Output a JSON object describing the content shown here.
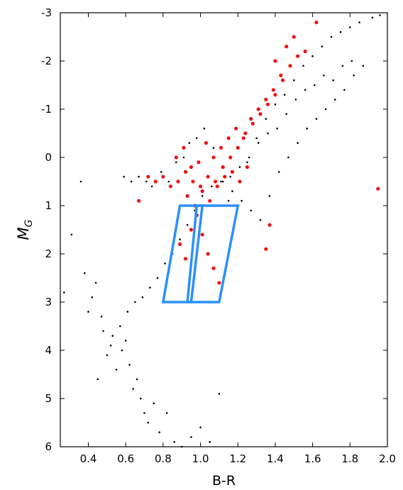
{
  "chart_data": {
    "type": "scatter",
    "title": "",
    "xlabel": "B-R",
    "ylabel": "M",
    "ylabel_subscript": "G",
    "xlim": [
      0.25,
      2.0
    ],
    "ylim": [
      6,
      -3
    ],
    "y_inverted": true,
    "grid": false,
    "xticks": [
      0.4,
      0.6,
      0.8,
      1.0,
      1.2,
      1.4,
      1.6,
      1.8,
      2.0
    ],
    "xtick_labels": [
      "0.4",
      "0.6",
      "0.8",
      "1.0",
      "1.2",
      "1.4",
      "1.6",
      "1.8",
      "2.0"
    ],
    "yticks": [
      -3,
      -2,
      -1,
      0,
      1,
      2,
      3,
      4,
      5,
      6
    ],
    "ytick_labels": [
      "-3",
      "-2",
      "-1",
      "0",
      "1",
      "2",
      "3",
      "4",
      "5",
      "6"
    ],
    "colors": {
      "black_points": "#000000",
      "red_points": "#ee1111",
      "boxes": "#2b8fff"
    },
    "series": [
      {
        "color": "#000000",
        "point_size": "small",
        "x": [
          0.27,
          0.31,
          0.36,
          0.38,
          0.4,
          0.42,
          0.45,
          0.48,
          0.5,
          0.52,
          0.55,
          0.58,
          0.6,
          0.62,
          0.64,
          0.66,
          0.68,
          0.7,
          0.72,
          0.75,
          0.78,
          0.82,
          0.86,
          0.9,
          0.95,
          1.0,
          1.05,
          1.1,
          1.15,
          1.2,
          1.25,
          1.3,
          1.35,
          1.4,
          1.45,
          1.5,
          1.55,
          1.6,
          1.65,
          1.7,
          1.75,
          1.8,
          1.85,
          1.92,
          1.96,
          0.44,
          0.47,
          0.53,
          0.57,
          0.61,
          0.65,
          0.69,
          0.73,
          0.77,
          0.81,
          0.85,
          0.89,
          0.93,
          0.97,
          1.01,
          1.06,
          1.11,
          1.16,
          1.21,
          1.26,
          1.31,
          1.36,
          1.41,
          1.46,
          1.51,
          1.56,
          1.61,
          1.66,
          1.71,
          1.76,
          1.81,
          0.59,
          0.63,
          0.67,
          0.71,
          0.74,
          0.79,
          0.83,
          0.87,
          0.91,
          0.94,
          0.98,
          1.02,
          1.07,
          1.12,
          1.17,
          1.22,
          1.27,
          1.32,
          1.37,
          1.42,
          1.47,
          1.52,
          1.57,
          1.62,
          1.67,
          1.72,
          1.77,
          1.82,
          1.87
        ],
        "y": [
          2.8,
          1.6,
          0.5,
          2.4,
          3.2,
          2.9,
          4.6,
          3.6,
          4.1,
          3.9,
          4.4,
          4.0,
          3.8,
          4.3,
          4.8,
          4.6,
          5.0,
          5.3,
          5.5,
          5.1,
          5.7,
          5.3,
          5.9,
          6.0,
          5.8,
          5.6,
          5.9,
          4.9,
          0.9,
          -0.2,
          0.1,
          -0.4,
          -0.8,
          -1.1,
          -1.3,
          -1.6,
          -1.9,
          -2.1,
          -2.3,
          -2.5,
          -2.6,
          -2.7,
          -2.8,
          -2.9,
          -2.95,
          2.6,
          3.3,
          3.7,
          3.5,
          3.2,
          3.0,
          2.9,
          2.7,
          2.5,
          2.2,
          2.0,
          1.7,
          1.4,
          1.1,
          0.8,
          0.6,
          0.5,
          0.4,
          0.2,
          0.0,
          -0.3,
          -0.5,
          -0.6,
          -0.9,
          -1.2,
          -1.4,
          -1.5,
          -1.7,
          -1.6,
          -1.9,
          -2.0,
          0.4,
          0.5,
          0.4,
          0.5,
          0.6,
          0.3,
          0.5,
          0.1,
          0.0,
          -0.3,
          -0.4,
          -0.6,
          -0.2,
          0.5,
          0.7,
          0.9,
          1.1,
          1.3,
          0.8,
          0.3,
          0.0,
          -0.3,
          -0.6,
          -0.8,
          -1.0,
          -1.2,
          -1.4,
          -1.7,
          -1.9
        ]
      },
      {
        "color": "#ee1111",
        "point_size": "large",
        "x": [
          0.67,
          1.62,
          1.95,
          1.37,
          1.35,
          0.72,
          0.76,
          0.8,
          0.84,
          0.88,
          0.92,
          0.96,
          1.0,
          1.04,
          1.08,
          1.12,
          1.16,
          1.2,
          1.24,
          1.28,
          1.32,
          1.36,
          1.4,
          1.44,
          1.48,
          1.52,
          1.56,
          0.87,
          0.91,
          0.95,
          0.99,
          1.03,
          1.07,
          1.11,
          1.15,
          1.19,
          1.23,
          1.27,
          1.31,
          1.35,
          1.39,
          1.43,
          0.93,
          0.97,
          1.01,
          1.05,
          1.09,
          1.13,
          1.17,
          1.21,
          1.25,
          0.89,
          0.92,
          0.95,
          0.98,
          1.01,
          1.04,
          1.07,
          1.1,
          1.4,
          1.46,
          1.5
        ],
        "y": [
          0.9,
          -2.8,
          0.65,
          1.4,
          1.9,
          0.4,
          0.5,
          0.4,
          0.6,
          0.5,
          0.3,
          0.5,
          0.6,
          0.4,
          0.5,
          0.2,
          0.0,
          -0.2,
          -0.5,
          -0.7,
          -0.9,
          -1.1,
          -1.3,
          -1.6,
          -1.9,
          -2.1,
          -2.2,
          0.0,
          -0.2,
          0.2,
          0.1,
          -0.3,
          0.0,
          -0.2,
          -0.4,
          -0.6,
          -0.4,
          -0.8,
          -1.0,
          -1.2,
          -1.4,
          -1.7,
          0.8,
          1.0,
          0.7,
          0.9,
          0.6,
          0.4,
          0.3,
          0.5,
          0.2,
          1.8,
          2.1,
          1.5,
          1.2,
          1.6,
          2.0,
          2.3,
          2.6,
          -2.0,
          -2.3,
          -2.5
        ]
      }
    ],
    "boxes": [
      {
        "name": "left-box",
        "vertices": [
          [
            0.89,
            1.0
          ],
          [
            1.01,
            1.0
          ],
          [
            0.95,
            3.0
          ],
          [
            0.8,
            3.0
          ]
        ]
      },
      {
        "name": "right-box",
        "vertices": [
          [
            0.98,
            1.0
          ],
          [
            1.2,
            1.0
          ],
          [
            1.1,
            3.0
          ],
          [
            0.93,
            3.0
          ]
        ]
      }
    ]
  }
}
